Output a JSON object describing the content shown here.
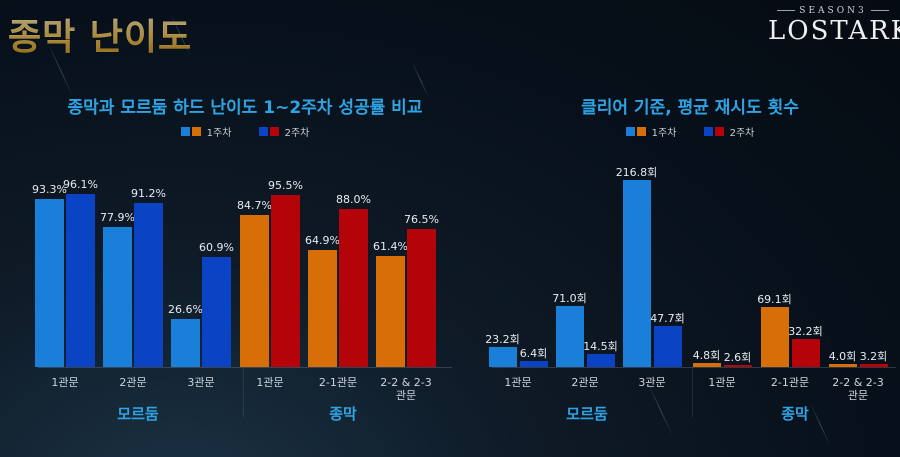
{
  "header": {
    "title": "종막 난이도",
    "logo_season": "SEASON3",
    "logo_name": "LOSTARK"
  },
  "colors": {
    "week1_mordum": "#1a7fd8",
    "week2_mordum": "#0a43c4",
    "week1_jongmak": "#d86e08",
    "week2_jongmak": "#b5030a",
    "title_blue": "#2fa4e4",
    "page_title_gold": "#f3c65a"
  },
  "legend": {
    "week1": "1주차",
    "week2": "2주차"
  },
  "chart_data": [
    {
      "type": "bar",
      "title": "종막과 모르둠 하드 난이도 1~2주차 성공률 비교",
      "categories": [
        "1관문",
        "2관문",
        "3관문",
        "1관문",
        "2-1관문",
        "2-2 & 2-3 관문"
      ],
      "category_groups": [
        {
          "name": "모르둠",
          "categories": [
            "1관문",
            "2관문",
            "3관문"
          ]
        },
        {
          "name": "종막",
          "categories": [
            "1관문",
            "2-1관문",
            "2-2 & 2-3 관문"
          ]
        }
      ],
      "series": [
        {
          "name": "1주차",
          "values": [
            93.3,
            77.9,
            26.6,
            84.7,
            64.9,
            61.4
          ]
        },
        {
          "name": "2주차",
          "values": [
            96.1,
            91.2,
            60.9,
            95.5,
            88.0,
            76.5
          ]
        }
      ],
      "labels_week1": [
        "93.3%",
        "77.9%",
        "26.6%",
        "84.7%",
        "64.9%",
        "61.4%"
      ],
      "labels_week2": [
        "96.1%",
        "91.2%",
        "60.9%",
        "95.5%",
        "88.0%",
        "76.5%"
      ],
      "unit": "%",
      "xlabel": "",
      "ylabel": "",
      "ylim": [
        0,
        100
      ],
      "grid": false,
      "legend_position": "top"
    },
    {
      "type": "bar",
      "title": "클리어 기준, 평균 재시도 횟수",
      "categories": [
        "1관문",
        "2관문",
        "3관문",
        "1관문",
        "2-1관문",
        "2-2 & 2-3 관문"
      ],
      "category_groups": [
        {
          "name": "모르둠",
          "categories": [
            "1관문",
            "2관문",
            "3관문"
          ]
        },
        {
          "name": "종막",
          "categories": [
            "1관문",
            "2-1관문",
            "2-2 & 2-3 관문"
          ]
        }
      ],
      "series": [
        {
          "name": "1주차",
          "values": [
            23.2,
            71.0,
            216.8,
            4.8,
            69.1,
            4.0
          ]
        },
        {
          "name": "2주차",
          "values": [
            6.4,
            14.5,
            47.7,
            2.6,
            32.2,
            3.2
          ]
        }
      ],
      "labels_week1": [
        "23.2회",
        "71.0회",
        "216.8회",
        "4.8회",
        "69.1회",
        "4.0회"
      ],
      "labels_week2": [
        "6.4회",
        "14.5회",
        "47.7회",
        "2.6회",
        "32.2회",
        "3.2회"
      ],
      "unit": "회",
      "xlabel": "",
      "ylabel": "",
      "ylim": [
        0,
        220
      ],
      "grid": false,
      "legend_position": "top"
    }
  ],
  "x_labels": {
    "c0": "1관문",
    "c1": "2관문",
    "c2": "3관문",
    "c3": "1관문",
    "c4": "2-1관문",
    "c5a": "2-2 & 2-3",
    "c5b": "관문"
  },
  "sections": {
    "mordum": "모르둠",
    "jongmak": "종막"
  }
}
